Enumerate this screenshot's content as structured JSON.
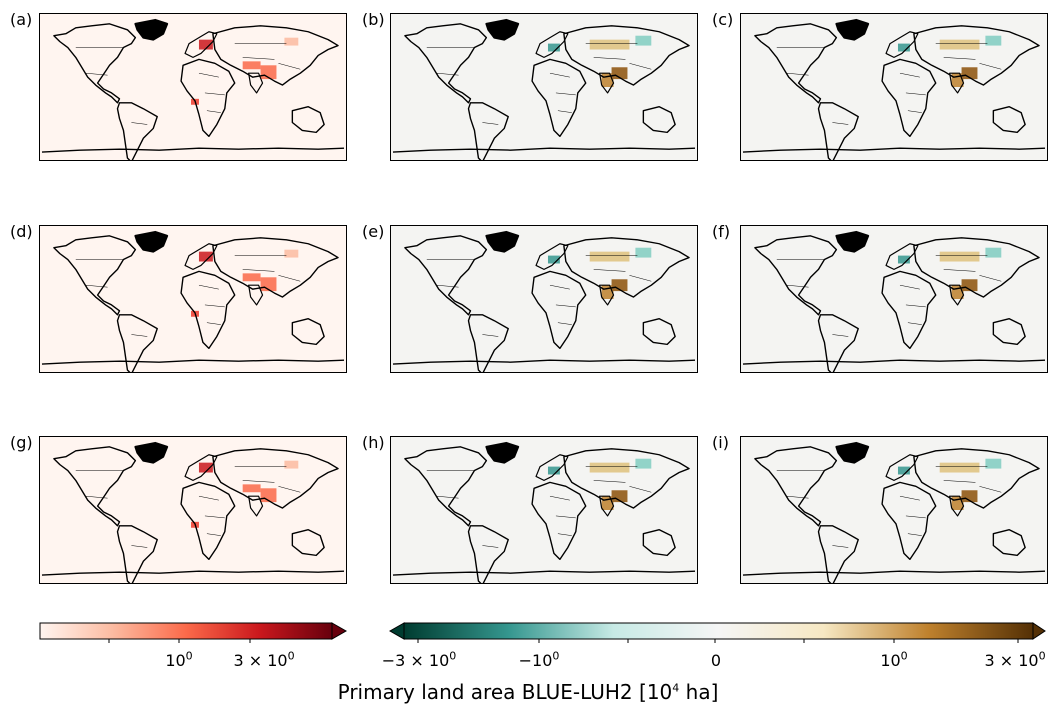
{
  "panels": [
    {
      "label": "(a)",
      "scale": "sequential"
    },
    {
      "label": "(b)",
      "scale": "diverging"
    },
    {
      "label": "(c)",
      "scale": "diverging"
    },
    {
      "label": "(d)",
      "scale": "sequential"
    },
    {
      "label": "(e)",
      "scale": "diverging"
    },
    {
      "label": "(f)",
      "scale": "diverging"
    },
    {
      "label": "(g)",
      "scale": "sequential"
    },
    {
      "label": "(h)",
      "scale": "diverging"
    },
    {
      "label": "(i)",
      "scale": "diverging"
    }
  ],
  "colorbars": {
    "sequential": {
      "colors": [
        "#fff5f0",
        "#fcbba1",
        "#fb6a4a",
        "#cb181d",
        "#67000d"
      ],
      "extend": "max",
      "ticks": [
        {
          "base": "10",
          "exp": "0"
        },
        {
          "base": "3 × 10",
          "exp": "0"
        }
      ]
    },
    "diverging": {
      "colors": [
        "#003c30",
        "#35978f",
        "#c7eae5",
        "#f5f5f5",
        "#f6e8c3",
        "#bf812d",
        "#543005"
      ],
      "extend": "both",
      "ticks": [
        {
          "base": "−3 × 10",
          "exp": "0"
        },
        {
          "base": "−10",
          "exp": "0"
        },
        {
          "base": "0",
          "exp": ""
        },
        {
          "base": "10",
          "exp": "0"
        },
        {
          "base": "3 × 10",
          "exp": "0"
        }
      ]
    }
  },
  "colorbar_title": {
    "text": "Primary land area BLUE-LUH2 [10",
    "exp": "4",
    "suffix": " ha]"
  },
  "chart_data": {
    "type": "heatmap",
    "description_of_grid": "3x3 grid of world choropleth maps",
    "colorbar_label": "Primary land area BLUE-LUH2 [10^4 ha]",
    "sequential_ticks": [
      "10^0",
      "3 × 10^0"
    ],
    "diverging_ticks": [
      "−3 × 10^0",
      "−10^0",
      "0",
      "10^0",
      "3 × 10^0"
    ]
  }
}
